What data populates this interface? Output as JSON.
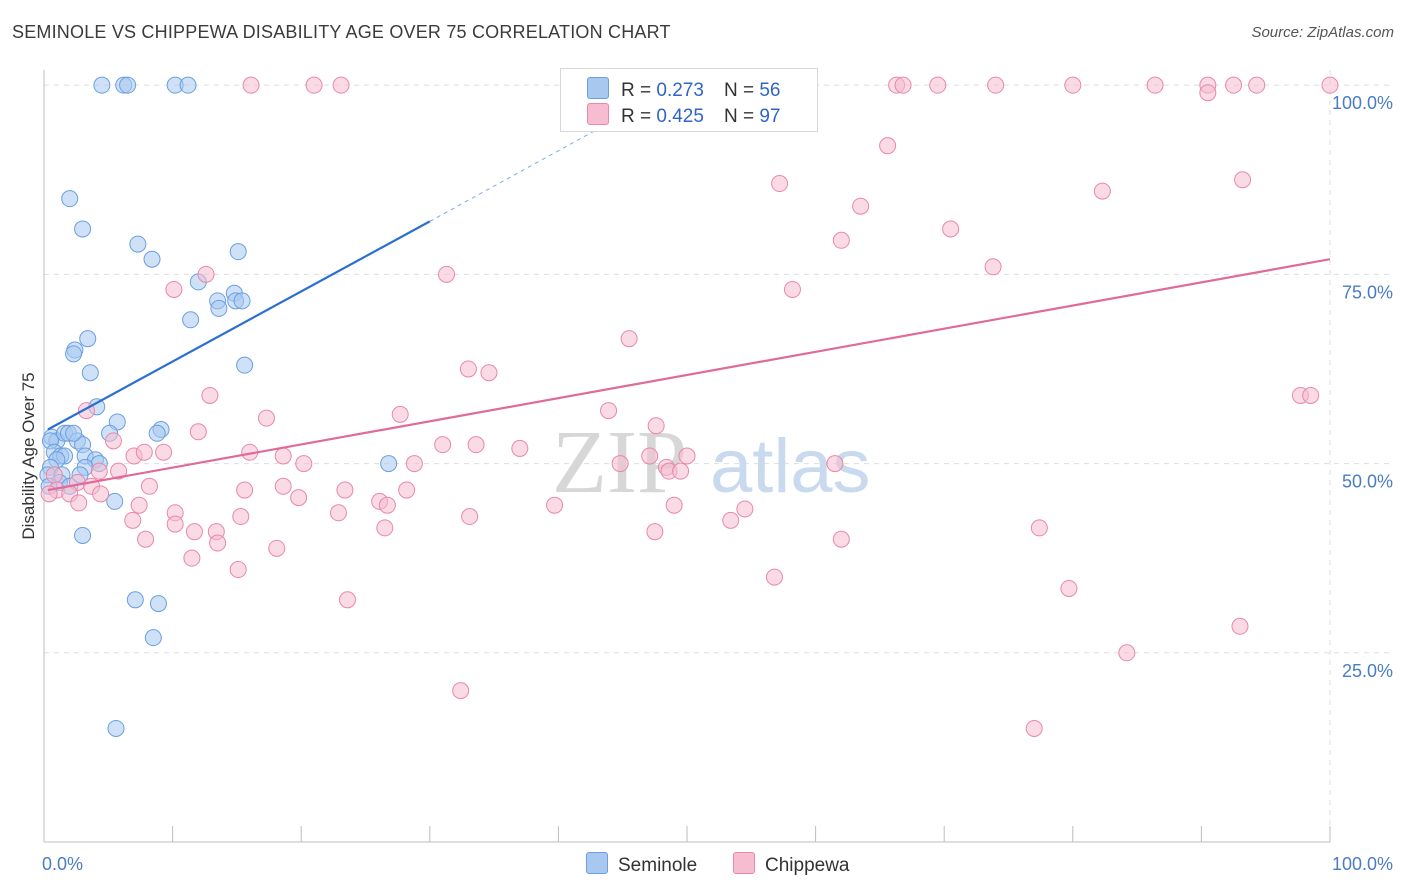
{
  "title": "SEMINOLE VS CHIPPEWA DISABILITY AGE OVER 75 CORRELATION CHART",
  "source": "Source: ZipAtlas.com",
  "watermark": {
    "zip": "ZIP",
    "atlas": "atlas"
  },
  "legend": {
    "r_label": "R =",
    "n_label": "N =",
    "series": [
      {
        "name": "Seminole",
        "r": "0.273",
        "n": "56"
      },
      {
        "name": "Chippewa",
        "r": "0.425",
        "n": "97"
      }
    ]
  },
  "colors": {
    "seminole_fill": "#a8c8f0",
    "seminole_stroke": "#6a9fe0",
    "seminole_line": "#2b6fd0",
    "chippewa_fill": "#f6bcd0",
    "chippewa_stroke": "#e888aa",
    "chippewa_line": "#e06a98",
    "tick_text": "#4a7cc4",
    "grid": "#dddddd"
  },
  "chart_data": {
    "type": "scatter",
    "title": "SEMINOLE VS CHIPPEWA DISABILITY AGE OVER 75 CORRELATION CHART",
    "xlabel": "",
    "ylabel": "Disability Age Over 75",
    "xlim": [
      0,
      100
    ],
    "ylim": [
      0,
      102
    ],
    "x_tick_labels": [
      "0.0%",
      "100.0%"
    ],
    "y_tick_labels": [
      "25.0%",
      "50.0%",
      "75.0%",
      "100.0%"
    ],
    "y_ticks": [
      25,
      50,
      75,
      100
    ],
    "grid": true,
    "legend_position": "top-center",
    "series": [
      {
        "name": "Seminole",
        "trend": {
          "x": [
            0.3,
            30.0
          ],
          "y": [
            54.5,
            82.0
          ],
          "extended_to": [
            45.0,
            96.0
          ]
        },
        "points": [
          [
            4.5,
            100
          ],
          [
            6.2,
            100
          ],
          [
            6.5,
            100
          ],
          [
            10.2,
            100
          ],
          [
            11.2,
            100
          ],
          [
            2.0,
            85
          ],
          [
            3.0,
            81
          ],
          [
            7.3,
            79
          ],
          [
            8.4,
            77
          ],
          [
            15.1,
            78
          ],
          [
            12.0,
            74
          ],
          [
            13.5,
            71.5
          ],
          [
            14.8,
            72.5
          ],
          [
            14.9,
            71.5
          ],
          [
            13.6,
            70.5
          ],
          [
            11.4,
            69
          ],
          [
            15.4,
            71.5
          ],
          [
            3.4,
            66.5
          ],
          [
            2.4,
            65
          ],
          [
            2.3,
            64.5
          ],
          [
            3.6,
            62
          ],
          [
            15.6,
            63
          ],
          [
            4.1,
            57.5
          ],
          [
            5.7,
            55.5
          ],
          [
            9.1,
            54.5
          ],
          [
            8.8,
            54
          ],
          [
            5.1,
            54
          ],
          [
            0.6,
            53.5
          ],
          [
            1.0,
            53
          ],
          [
            1.6,
            54
          ],
          [
            1.9,
            54
          ],
          [
            2.6,
            53
          ],
          [
            3.0,
            52.5
          ],
          [
            2.3,
            54
          ],
          [
            0.5,
            53
          ],
          [
            0.8,
            51.5
          ],
          [
            1.3,
            51
          ],
          [
            1.6,
            51
          ],
          [
            3.2,
            51
          ],
          [
            4.0,
            50.5
          ],
          [
            4.3,
            50
          ],
          [
            3.2,
            49.5
          ],
          [
            1.0,
            50.5
          ],
          [
            0.5,
            49.5
          ],
          [
            0.3,
            48.5
          ],
          [
            1.4,
            48.5
          ],
          [
            2.8,
            48.5
          ],
          [
            1.2,
            47.5
          ],
          [
            0.4,
            47
          ],
          [
            2.0,
            47
          ],
          [
            26.8,
            50
          ],
          [
            5.5,
            45
          ],
          [
            3.0,
            40.5
          ],
          [
            7.1,
            32
          ],
          [
            8.9,
            31.5
          ],
          [
            8.5,
            27
          ],
          [
            5.6,
            15
          ]
        ]
      },
      {
        "name": "Chippewa",
        "trend": {
          "x": [
            0.3,
            100.0
          ],
          "y": [
            46.5,
            77.0
          ]
        },
        "points": [
          [
            16.1,
            100
          ],
          [
            21.0,
            100
          ],
          [
            23.1,
            100
          ],
          [
            66.3,
            100
          ],
          [
            66.8,
            100
          ],
          [
            69.5,
            100
          ],
          [
            74.0,
            100
          ],
          [
            80.0,
            100
          ],
          [
            86.4,
            100
          ],
          [
            90.5,
            100
          ],
          [
            92.5,
            100
          ],
          [
            94.3,
            100
          ],
          [
            100,
            100
          ],
          [
            90.5,
            99
          ],
          [
            65.6,
            92
          ],
          [
            57.2,
            87
          ],
          [
            93.2,
            87.5
          ],
          [
            82.3,
            86
          ],
          [
            63.5,
            84
          ],
          [
            70.5,
            81
          ],
          [
            62.0,
            79.5
          ],
          [
            12.6,
            75
          ],
          [
            31.3,
            75
          ],
          [
            73.8,
            76
          ],
          [
            10.1,
            73
          ],
          [
            58.2,
            73
          ],
          [
            45.5,
            66.5
          ],
          [
            33.0,
            62.5
          ],
          [
            34.6,
            62
          ],
          [
            12.9,
            59
          ],
          [
            97.7,
            59
          ],
          [
            98.5,
            59
          ],
          [
            3.3,
            57
          ],
          [
            17.3,
            56
          ],
          [
            27.7,
            56.5
          ],
          [
            43.9,
            57
          ],
          [
            47.6,
            55
          ],
          [
            12.0,
            54.2
          ],
          [
            5.4,
            53
          ],
          [
            31.0,
            52.5
          ],
          [
            37.0,
            52
          ],
          [
            16.0,
            51.5
          ],
          [
            18.6,
            51
          ],
          [
            33.6,
            52.5
          ],
          [
            47.1,
            51
          ],
          [
            7.0,
            51
          ],
          [
            7.8,
            51.5
          ],
          [
            9.3,
            51.5
          ],
          [
            50.0,
            51
          ],
          [
            4.3,
            49
          ],
          [
            5.8,
            49
          ],
          [
            48.4,
            49.5
          ],
          [
            48.6,
            49
          ],
          [
            49.5,
            49
          ],
          [
            61.5,
            50
          ],
          [
            20.2,
            50
          ],
          [
            28.8,
            50
          ],
          [
            44.8,
            50
          ],
          [
            0.8,
            48.5
          ],
          [
            2.6,
            47.5
          ],
          [
            3.7,
            47
          ],
          [
            8.2,
            47
          ],
          [
            15.6,
            46.5
          ],
          [
            18.6,
            47
          ],
          [
            23.4,
            46.5
          ],
          [
            1.0,
            46.5
          ],
          [
            2.0,
            46
          ],
          [
            4.4,
            46
          ],
          [
            0.4,
            46
          ],
          [
            19.8,
            45.5
          ],
          [
            28.2,
            46.5
          ],
          [
            26.1,
            45
          ],
          [
            26.7,
            44.5
          ],
          [
            49.0,
            44.5
          ],
          [
            39.7,
            44.5
          ],
          [
            2.7,
            44.8
          ],
          [
            7.4,
            44.5
          ],
          [
            10.2,
            43.5
          ],
          [
            15.3,
            43
          ],
          [
            22.9,
            43.5
          ],
          [
            33.1,
            43
          ],
          [
            54.5,
            44
          ],
          [
            53.4,
            42.5
          ],
          [
            6.9,
            42.5
          ],
          [
            10.2,
            42
          ],
          [
            11.7,
            41
          ],
          [
            13.4,
            41
          ],
          [
            26.5,
            41.5
          ],
          [
            47.5,
            41
          ],
          [
            7.9,
            40
          ],
          [
            13.5,
            39.5
          ],
          [
            18.1,
            38.8
          ],
          [
            11.5,
            37.5
          ],
          [
            62.0,
            40
          ],
          [
            77.4,
            41.5
          ],
          [
            15.1,
            36
          ],
          [
            56.8,
            35
          ],
          [
            79.7,
            33.5
          ],
          [
            23.6,
            32
          ],
          [
            93.0,
            28.5
          ],
          [
            84.2,
            25
          ],
          [
            32.4,
            20
          ],
          [
            77.0,
            15
          ]
        ]
      }
    ]
  }
}
